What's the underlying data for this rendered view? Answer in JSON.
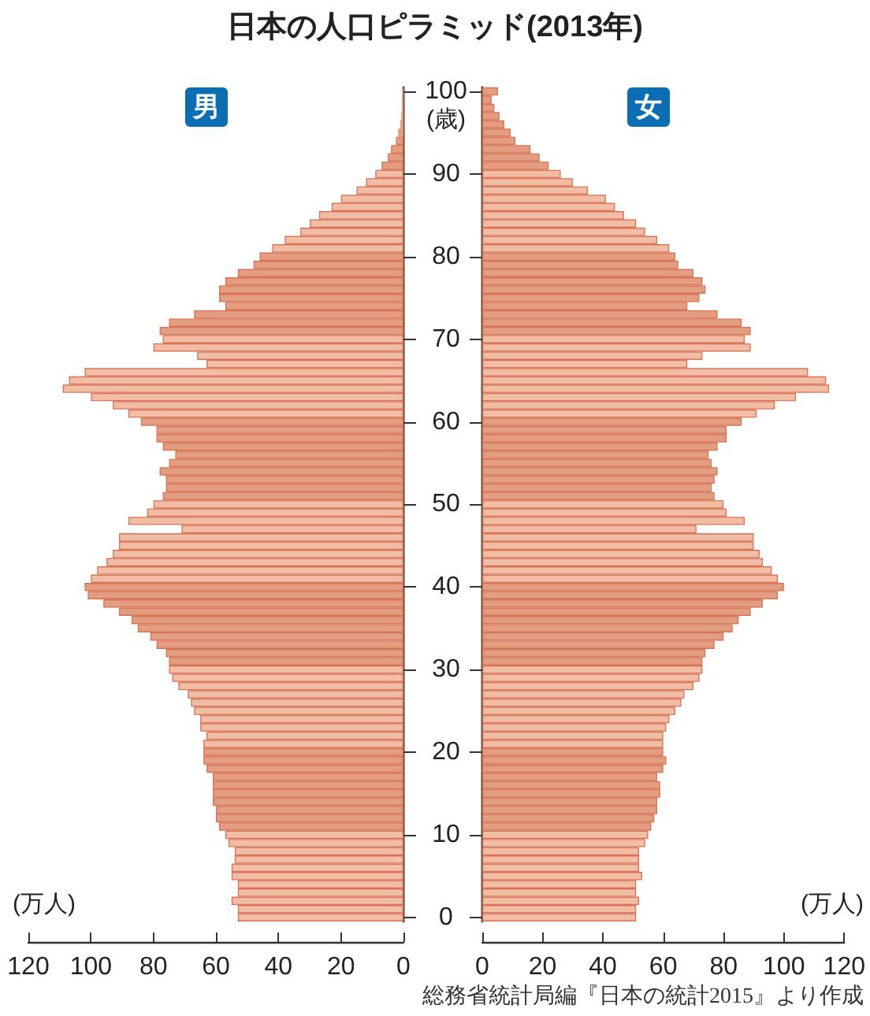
{
  "chart_data": [
    {
      "type": "bar",
      "orientation": "horizontal",
      "title": "日本の人口ピラミッド(2013年)",
      "xlabel": "(万人)",
      "tick_labels": "x",
      "grid": false,
      "categories": [
        "100",
        null,
        null,
        null,
        null,
        null,
        null,
        null,
        null,
        null,
        "90",
        null,
        null,
        null,
        null,
        null,
        null,
        null,
        null,
        null,
        "80",
        null,
        null,
        null,
        null,
        null,
        null,
        null,
        null,
        null,
        "70",
        null,
        null,
        null,
        null,
        null,
        null,
        null,
        null,
        null,
        "60",
        null,
        null,
        null,
        null,
        null,
        null,
        null,
        null,
        null,
        "50",
        null,
        null,
        null,
        null,
        null,
        null,
        null,
        null,
        null,
        "40",
        null,
        null,
        null,
        null,
        null,
        null,
        null,
        null,
        null,
        "30",
        null,
        null,
        null,
        null,
        null,
        null,
        null,
        null,
        null,
        "20",
        null,
        null,
        null,
        null,
        null,
        null,
        null,
        null,
        null,
        "10",
        null,
        null,
        null,
        null,
        null,
        null,
        null,
        null,
        null,
        "0"
      ],
      "xlim": [
        120,
        0
      ],
      "xticks": [
        120,
        100,
        80,
        60,
        40,
        20,
        0
      ],
      "series": [
        {
          "name": "男",
          "values": [
            0.3,
            0.3,
            0.5,
            0.7,
            1,
            1.7,
            2.4,
            4,
            5,
            7,
            9,
            12,
            15,
            20,
            23,
            27,
            30,
            33,
            38,
            42,
            46,
            48,
            53,
            57,
            59,
            59,
            57,
            67,
            75,
            78,
            77,
            80,
            66,
            63,
            102,
            107,
            109,
            100,
            93,
            88,
            84,
            79,
            79,
            77,
            73,
            75,
            78,
            76,
            76,
            77,
            80,
            82,
            88,
            71,
            91,
            91,
            93,
            95,
            98,
            100,
            102,
            101,
            96,
            91,
            87,
            85,
            81,
            79,
            76,
            75,
            75,
            74,
            72,
            69,
            68,
            67,
            65,
            65,
            63,
            64,
            64,
            64,
            63,
            61,
            61,
            61,
            61,
            60,
            60,
            59,
            57,
            56,
            54,
            54,
            55,
            55,
            53,
            53,
            55,
            53,
            53
          ],
          "colors": [
            "#e39d80",
            "#e39d80",
            "#e39d80",
            "#e39d80",
            "#e39d80",
            "#e39d80",
            "#e39d80",
            "#e39d80",
            "#e39d80",
            "#e39d80",
            "#f2bda5",
            "#f2bda5",
            "#f2bda5",
            "#f2bda5",
            "#f2bda5",
            "#f2bda5",
            "#f2bda5",
            "#f2bda5",
            "#f2bda5",
            "#f2bda5",
            "#e39d80",
            "#e39d80",
            "#e39d80",
            "#e39d80",
            "#e39d80",
            "#e39d80",
            "#e39d80",
            "#e39d80",
            "#e39d80",
            "#e39d80",
            "#f2bda5",
            "#f2bda5",
            "#f2bda5",
            "#f2bda5",
            "#f2bda5",
            "#f2bda5",
            "#f2bda5",
            "#f2bda5",
            "#f2bda5",
            "#f2bda5",
            "#e39d80",
            "#e39d80",
            "#e39d80",
            "#e39d80",
            "#e39d80",
            "#e39d80",
            "#e39d80",
            "#e39d80",
            "#e39d80",
            "#e39d80",
            "#f2bda5",
            "#f2bda5",
            "#f2bda5",
            "#f2bda5",
            "#f2bda5",
            "#f2bda5",
            "#f2bda5",
            "#f2bda5",
            "#f2bda5",
            "#f2bda5",
            "#e39d80",
            "#e39d80",
            "#e39d80",
            "#e39d80",
            "#e39d80",
            "#e39d80",
            "#e39d80",
            "#e39d80",
            "#e39d80",
            "#e39d80",
            "#f2bda5",
            "#f2bda5",
            "#f2bda5",
            "#f2bda5",
            "#f2bda5",
            "#f2bda5",
            "#f2bda5",
            "#f2bda5",
            "#f2bda5",
            "#f2bda5",
            "#e39d80",
            "#e39d80",
            "#e39d80",
            "#e39d80",
            "#e39d80",
            "#e39d80",
            "#e39d80",
            "#e39d80",
            "#e39d80",
            "#e39d80",
            "#f2bda5",
            "#f2bda5",
            "#f2bda5",
            "#f2bda5",
            "#f2bda5",
            "#f2bda5",
            "#f2bda5",
            "#f2bda5",
            "#f2bda5",
            "#f2bda5",
            "#f2bda5"
          ]
        }
      ]
    },
    {
      "type": "bar",
      "orientation": "horizontal",
      "xlabel": "(万人)",
      "ylabel": "(歳)",
      "grid": false,
      "annotations": [
        "総務省統計局編『日本の統計2015』より作成"
      ],
      "categories": [
        "100",
        null,
        null,
        null,
        null,
        null,
        null,
        null,
        null,
        null,
        "90",
        null,
        null,
        null,
        null,
        null,
        null,
        null,
        null,
        null,
        "80",
        null,
        null,
        null,
        null,
        null,
        null,
        null,
        null,
        null,
        "70",
        null,
        null,
        null,
        null,
        null,
        null,
        null,
        null,
        null,
        "60",
        null,
        null,
        null,
        null,
        null,
        null,
        null,
        null,
        null,
        "50",
        null,
        null,
        null,
        null,
        null,
        null,
        null,
        null,
        null,
        "40",
        null,
        null,
        null,
        null,
        null,
        null,
        null,
        null,
        null,
        "30",
        null,
        null,
        null,
        null,
        null,
        null,
        null,
        null,
        null,
        "20",
        null,
        null,
        null,
        null,
        null,
        null,
        null,
        null,
        null,
        "10",
        null,
        null,
        null,
        null,
        null,
        null,
        null,
        null,
        null,
        "0"
      ],
      "xlim": [
        0,
        120
      ],
      "xticks": [
        0,
        20,
        40,
        60,
        80,
        100,
        120
      ],
      "series": [
        {
          "name": "女",
          "values": [
            5.2,
            3.1,
            4,
            5.7,
            7.3,
            9.4,
            11,
            16,
            19,
            22,
            26,
            30,
            35,
            41,
            44,
            47,
            51,
            54,
            58,
            62,
            64,
            65,
            70,
            73,
            74,
            72,
            68,
            78,
            86,
            89,
            87,
            89,
            73,
            68,
            108,
            114,
            115,
            104,
            97,
            91,
            86,
            81,
            81,
            78,
            75,
            76,
            78,
            77,
            76,
            77,
            80,
            81,
            87,
            71,
            90,
            90,
            92,
            93,
            96,
            98,
            100,
            98,
            93,
            89,
            85,
            83,
            80,
            77,
            74,
            73,
            73,
            72,
            70,
            67,
            66,
            64,
            62,
            61,
            60,
            60,
            60,
            61,
            60,
            58,
            59,
            59,
            58,
            58,
            57,
            56,
            55,
            54,
            52,
            52,
            52,
            53,
            51,
            51,
            52,
            51,
            51
          ],
          "colors": [
            "#e39d80",
            "#e39d80",
            "#e39d80",
            "#e39d80",
            "#e39d80",
            "#e39d80",
            "#e39d80",
            "#e39d80",
            "#e39d80",
            "#e39d80",
            "#f2bda5",
            "#f2bda5",
            "#f2bda5",
            "#f2bda5",
            "#f2bda5",
            "#f2bda5",
            "#f2bda5",
            "#f2bda5",
            "#f2bda5",
            "#f2bda5",
            "#e39d80",
            "#e39d80",
            "#e39d80",
            "#e39d80",
            "#e39d80",
            "#e39d80",
            "#e39d80",
            "#e39d80",
            "#e39d80",
            "#e39d80",
            "#f2bda5",
            "#f2bda5",
            "#f2bda5",
            "#f2bda5",
            "#f2bda5",
            "#f2bda5",
            "#f2bda5",
            "#f2bda5",
            "#f2bda5",
            "#f2bda5",
            "#e39d80",
            "#e39d80",
            "#e39d80",
            "#e39d80",
            "#e39d80",
            "#e39d80",
            "#e39d80",
            "#e39d80",
            "#e39d80",
            "#e39d80",
            "#f2bda5",
            "#f2bda5",
            "#f2bda5",
            "#f2bda5",
            "#f2bda5",
            "#f2bda5",
            "#f2bda5",
            "#f2bda5",
            "#f2bda5",
            "#f2bda5",
            "#e39d80",
            "#e39d80",
            "#e39d80",
            "#e39d80",
            "#e39d80",
            "#e39d80",
            "#e39d80",
            "#e39d80",
            "#e39d80",
            "#e39d80",
            "#f2bda5",
            "#f2bda5",
            "#f2bda5",
            "#f2bda5",
            "#f2bda5",
            "#f2bda5",
            "#f2bda5",
            "#f2bda5",
            "#f2bda5",
            "#f2bda5",
            "#e39d80",
            "#e39d80",
            "#e39d80",
            "#e39d80",
            "#e39d80",
            "#e39d80",
            "#e39d80",
            "#e39d80",
            "#e39d80",
            "#e39d80",
            "#f2bda5",
            "#f2bda5",
            "#f2bda5",
            "#f2bda5",
            "#f2bda5",
            "#f2bda5",
            "#f2bda5",
            "#f2bda5",
            "#f2bda5",
            "#f2bda5",
            "#f2bda5"
          ]
        }
      ]
    }
  ]
}
